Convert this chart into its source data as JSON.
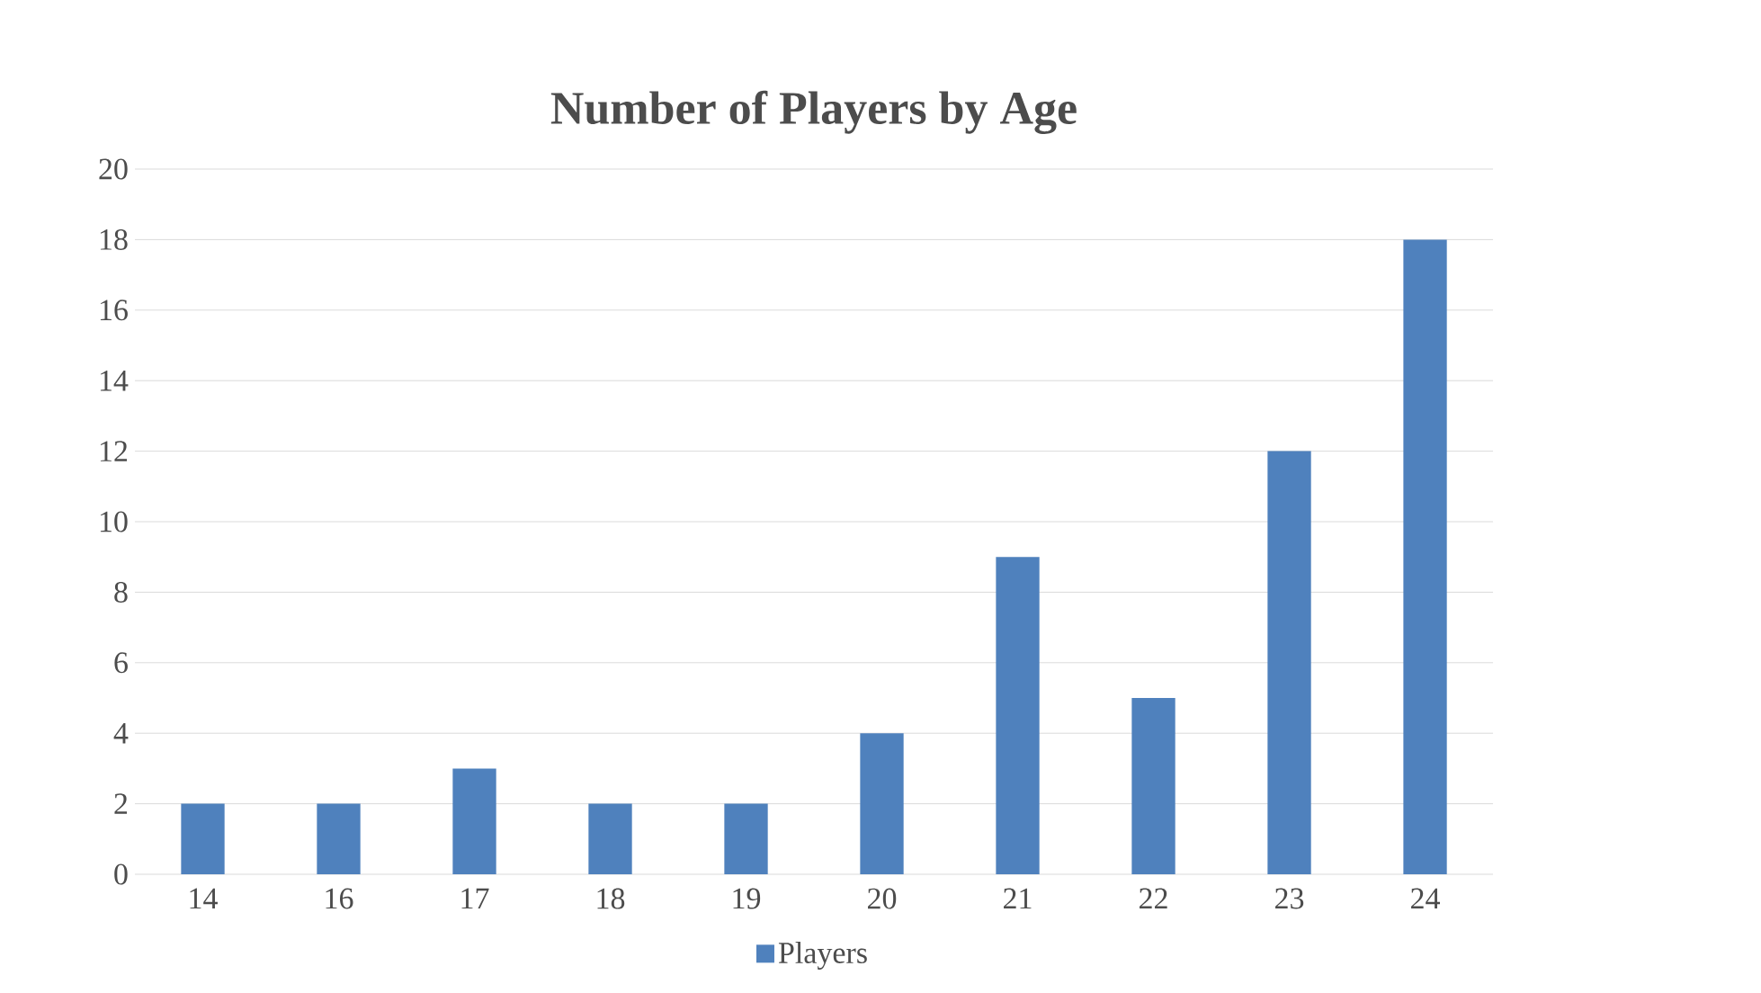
{
  "chart_data": {
    "type": "bar",
    "title": "Number of Players by Age",
    "categories": [
      "14",
      "16",
      "17",
      "18",
      "19",
      "20",
      "21",
      "22",
      "23",
      "24"
    ],
    "series": [
      {
        "name": "Players",
        "color": "#4f81bd",
        "values": [
          2,
          2,
          3,
          2,
          2,
          4,
          9,
          5,
          12,
          18
        ]
      }
    ],
    "ylim": [
      0,
      20
    ],
    "yticks": [
      0,
      2,
      4,
      6,
      8,
      10,
      12,
      14,
      16,
      18,
      20
    ],
    "grid": "y",
    "legend": "bottom"
  }
}
